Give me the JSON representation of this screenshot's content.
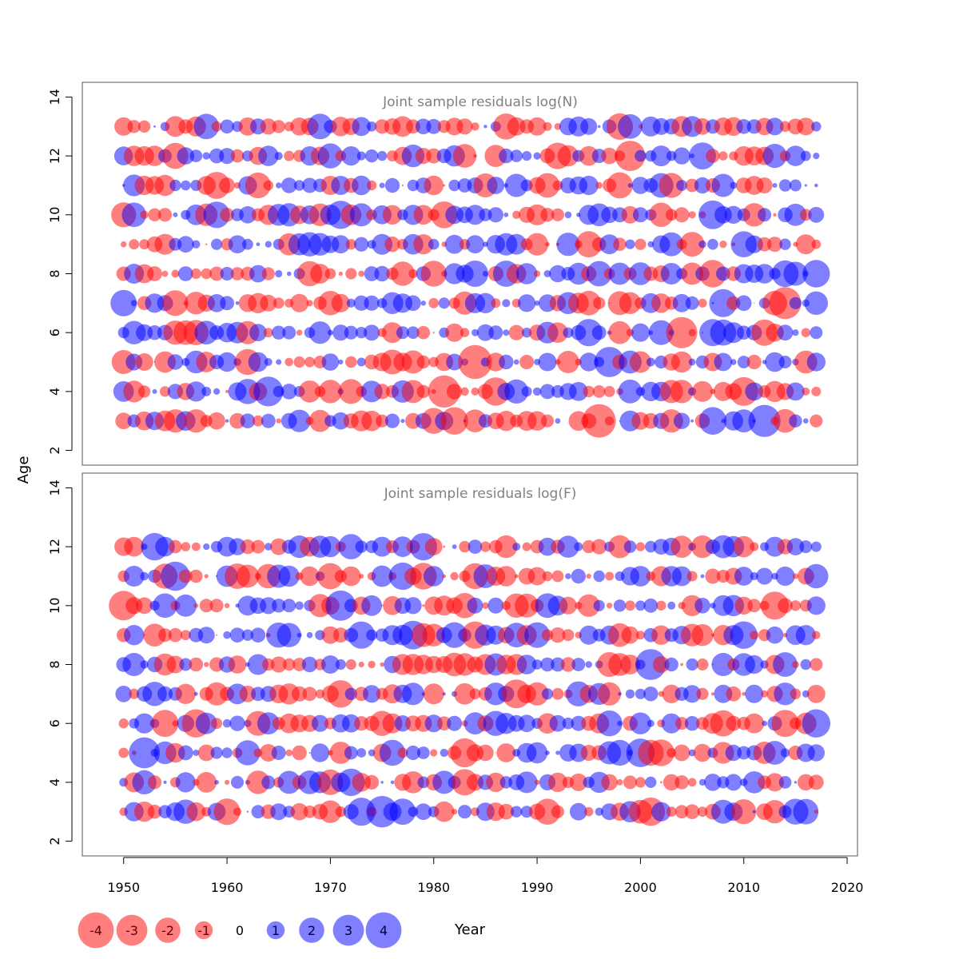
{
  "chart_data": {
    "type": "bubble",
    "ylabel": "Age",
    "xlabel": "Year",
    "grid": false,
    "encoding": "bubble area proportional to absolute residual; red = negative, blue = positive",
    "colors": {
      "positive": "#0000ff",
      "negative": "#ff0000",
      "title_text": "#808080",
      "zero_label": "#000000"
    },
    "x_axis": {
      "range": [
        1946,
        2021
      ],
      "ticks": [
        1950,
        1960,
        1970,
        1980,
        1990,
        2000,
        2010,
        2020
      ],
      "tick_labels": [
        "1950",
        "1960",
        "1970",
        "1980",
        "1990",
        "2000",
        "2010",
        "2020"
      ]
    },
    "panels": [
      {
        "title": "Joint sample residuals log(N)",
        "y_range": [
          1.5,
          14.5
        ],
        "y_ticks": [
          2,
          4,
          6,
          8,
          10,
          12,
          14
        ],
        "y_tick_labels": [
          "2",
          "4",
          "6",
          "8",
          "10",
          "12",
          "14"
        ],
        "ages": [
          3,
          4,
          5,
          6,
          7,
          8,
          9,
          10,
          11,
          12,
          13
        ],
        "years": [
          1950,
          2017
        ]
      },
      {
        "title": "Joint sample residuals log(F)",
        "y_range": [
          1.5,
          14.5
        ],
        "y_ticks": [
          2,
          4,
          6,
          8,
          10,
          12,
          14
        ],
        "y_tick_labels": [
          "2",
          "4",
          "6",
          "8",
          "10",
          "12",
          "14"
        ],
        "ages": [
          3,
          4,
          5,
          6,
          7,
          8,
          9,
          10,
          11,
          12
        ],
        "years": [
          1950,
          2017
        ]
      }
    ],
    "legend": {
      "position": "bottom-left",
      "values": [
        -4,
        -3,
        -2,
        -1,
        0,
        1,
        2,
        3,
        4
      ],
      "labels": [
        "-4",
        "-3",
        "-2",
        "-1",
        "0",
        "1",
        "2",
        "3",
        "4"
      ]
    }
  }
}
